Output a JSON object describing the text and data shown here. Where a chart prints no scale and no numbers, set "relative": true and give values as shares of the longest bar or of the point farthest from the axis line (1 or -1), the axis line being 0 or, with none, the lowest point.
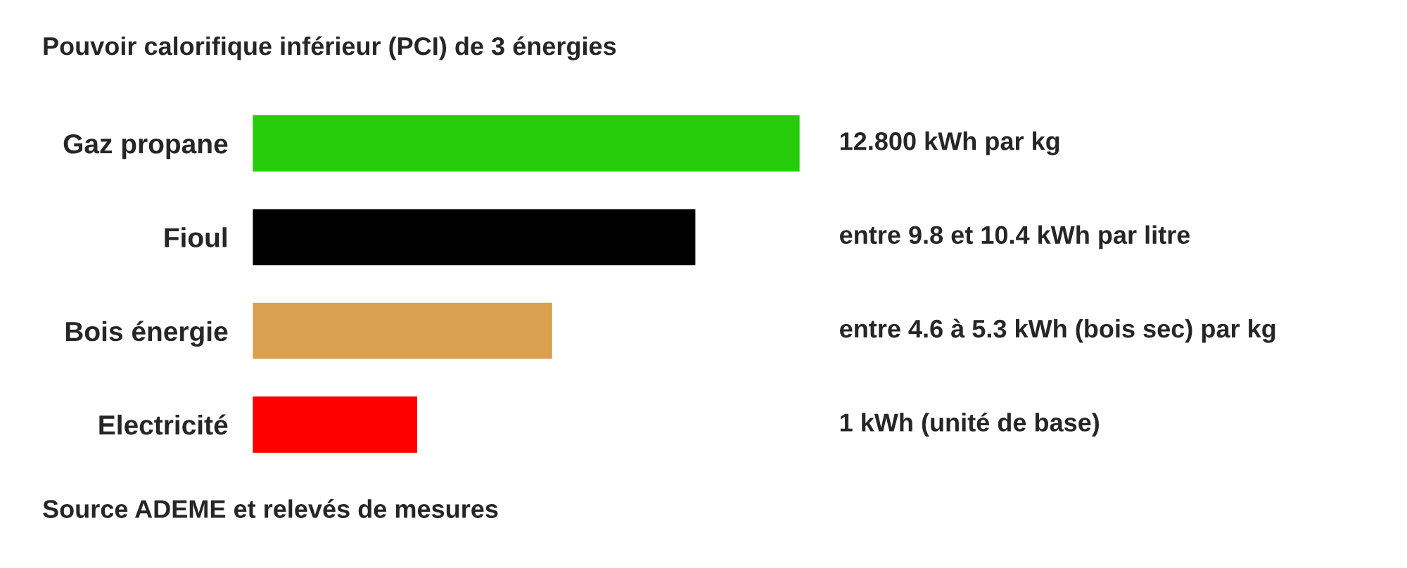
{
  "chart_data": {
    "type": "bar",
    "orientation": "horizontal",
    "relative": true,
    "title": "Pouvoir calorifique inférieur (PCI) de 3 énergies",
    "categories": [
      "Gaz propane",
      "Fioul",
      "Bois énergie",
      "Electricité"
    ],
    "values": [
      1,
      0.81,
      0.549,
      0.303
    ],
    "colors": [
      "#27cc0a",
      "#000000",
      "#d9a050",
      "#ff0000"
    ],
    "annotations": [
      "12.800 kWh par kg",
      "entre 9.8 et 10.4 kWh par litre",
      "entre 4.6 à 5.3 kWh (bois sec) par kg",
      "1 kWh (unité de base)",
      "Source ADEME et relevés de mesures"
    ],
    "grid": false,
    "legend": false
  }
}
